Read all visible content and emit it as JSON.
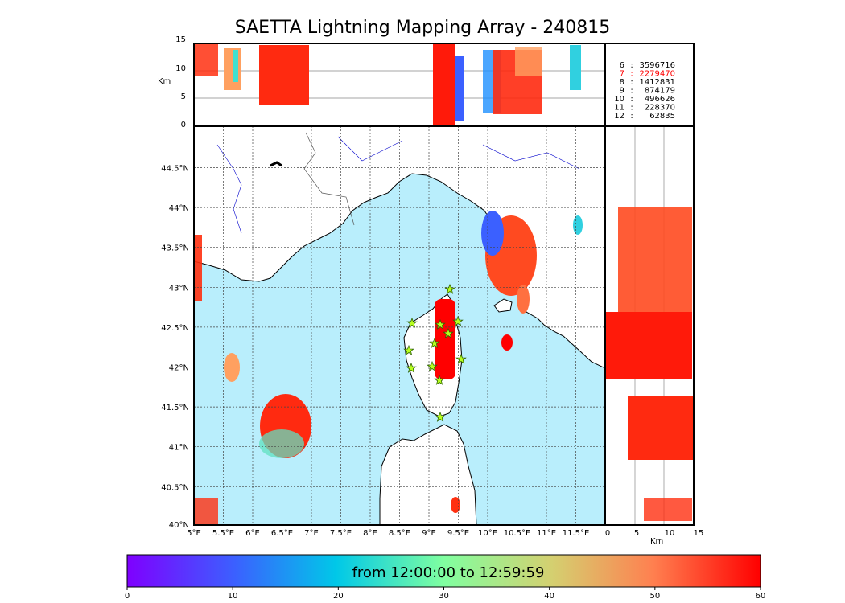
{
  "title": "SAETTA Lightning Mapping Array - 240815",
  "alt_axis": {
    "label": "Km",
    "ticks": [
      "15",
      "10",
      "5",
      "0"
    ]
  },
  "side_axis": {
    "label": "Km",
    "ticks": [
      "0",
      "5",
      "10",
      "15"
    ]
  },
  "map": {
    "lon_ticks": [
      "5°E",
      "5.5°E",
      "6°E",
      "6.5°E",
      "7°E",
      "7.5°E",
      "8°E",
      "8.5°E",
      "9°E",
      "9.5°E",
      "10°E",
      "10.5°E",
      "11°E",
      "11.5°E"
    ],
    "lat_ticks": [
      "44.5°N",
      "44°N",
      "43.5°N",
      "43°N",
      "42.5°N",
      "42°N",
      "41.5°N",
      "41°N",
      "40.5°N",
      "40°N"
    ]
  },
  "station_counts": [
    {
      "station": "6",
      "sep": ":",
      "count": "3596716",
      "color": "#000000"
    },
    {
      "station": "7",
      "sep": ":",
      "count": "2279470",
      "color": "#ff0000"
    },
    {
      "station": "8",
      "sep": ":",
      "count": "1412831",
      "color": "#000000"
    },
    {
      "station": "9",
      "sep": ":",
      "count": "874179",
      "color": "#000000"
    },
    {
      "station": "10",
      "sep": ":",
      "count": "496626",
      "color": "#000000"
    },
    {
      "station": "11",
      "sep": ":",
      "count": "228370",
      "color": "#000000"
    },
    {
      "station": "12",
      "sep": ":",
      "count": "62835",
      "color": "#000000"
    }
  ],
  "colorbar": {
    "label": "from 12:00:00 to 12:59:59",
    "ticks": [
      "0",
      "10",
      "20",
      "30",
      "40",
      "50",
      "60"
    ],
    "colors": [
      "#7f00ff",
      "#1e90ff",
      "#00d4e0",
      "#7fffb0",
      "#ffb060",
      "#ff2a10",
      "#ff0000"
    ]
  },
  "colors": {
    "sea": "#b9eefc",
    "land": "#ffffff",
    "river": "#0000cc",
    "border": "#000000"
  }
}
